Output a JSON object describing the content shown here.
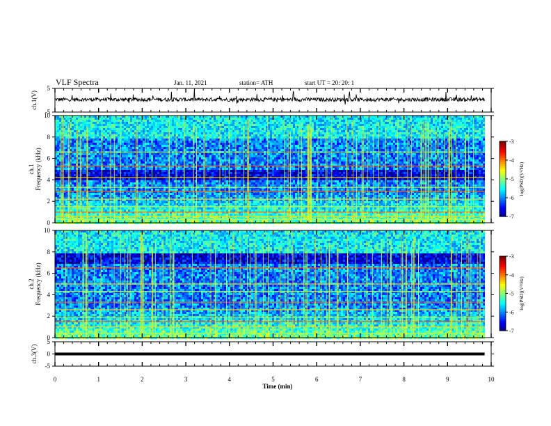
{
  "header": {
    "title": "VLF Spectra",
    "date": "Jan. 11, 2021",
    "station": "station= ATH",
    "start": "start UT =   20: 20: 1"
  },
  "chart_data": [
    {
      "type": "line",
      "panel": "ch1-timeseries",
      "ylabel": "ch.1(V)",
      "ylim": [
        -5,
        5
      ],
      "yticks": [
        5,
        -5
      ],
      "baseline": 0.3,
      "noise": "dense random trace with spikes"
    },
    {
      "type": "heatmap",
      "panel": "ch1-spectrogram",
      "ylabel_line1": "ch.1",
      "ylabel_line2": "Frequency (kHz)",
      "ylim": [
        0,
        10
      ],
      "yticks": [
        0,
        2,
        4,
        6,
        8,
        10
      ],
      "colorbar": {
        "label": "log(PSD)(V²/Hz)",
        "ticks": [
          -3,
          -4,
          -5,
          -6,
          -7
        ],
        "range": [
          -7,
          -3
        ]
      },
      "bands_khz": [
        0.3,
        0.6,
        1.0,
        1.5,
        2.2,
        2.9,
        3.3,
        4.2,
        5.3,
        6.6
      ],
      "dark_band_khz": [
        4.0,
        5.0
      ]
    },
    {
      "type": "heatmap",
      "panel": "ch2-spectrogram",
      "ylabel_line1": "ch.2",
      "ylabel_line2": "Frequency (kHz)",
      "ylim": [
        0,
        10
      ],
      "yticks": [
        0,
        2,
        4,
        6,
        8,
        10
      ],
      "colorbar": {
        "label": "log(PSD)(V²/Hz)",
        "ticks": [
          -3,
          -4,
          -5,
          -6,
          -7
        ],
        "range": [
          -7,
          -3
        ]
      },
      "bands_khz": [
        0.4,
        1.0,
        1.5,
        1.9,
        2.6,
        3.3,
        4.3,
        5.0,
        6.5
      ],
      "dark_band_khz": [
        7.0,
        8.0
      ]
    },
    {
      "type": "line",
      "panel": "ch3-timeseries",
      "ylabel": "ch.3(V)",
      "ylim": [
        -5,
        5
      ],
      "yticks": [
        5,
        0,
        -5
      ],
      "baseline": 0,
      "noise": "flat thick line"
    }
  ],
  "xaxis": {
    "label": "Time (min)",
    "range": [
      0,
      10
    ],
    "data_end": 9.85,
    "ticks": [
      "0",
      "1",
      "2",
      "3",
      "4",
      "5",
      "6",
      "7",
      "8",
      "9",
      "10"
    ]
  }
}
